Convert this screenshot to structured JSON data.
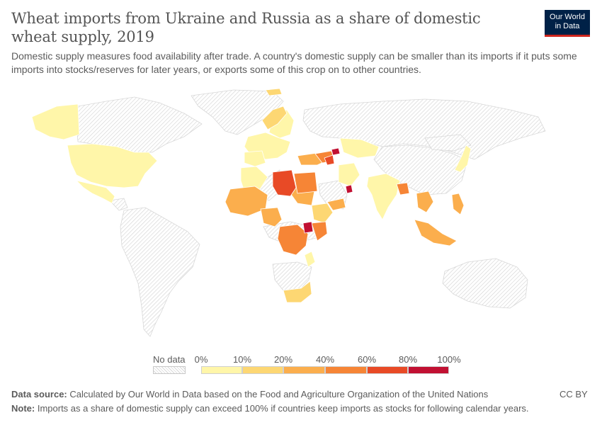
{
  "header": {
    "title": "Wheat imports from Ukraine and Russia as a share of domestic wheat supply, 2019",
    "subtitle": "Domestic supply measures food availability after trade. A country's domestic supply can be smaller than its imports if it puts some imports into stocks/reserves for later years, or exports some of this crop on to other countries.",
    "logo_line1": "Our World",
    "logo_line2": "in Data"
  },
  "legend": {
    "no_data_label": "No data",
    "ticks": [
      "0%",
      "10%",
      "20%",
      "40%",
      "60%",
      "80%",
      "100%"
    ],
    "colors": [
      "#fff6a9",
      "#fdd773",
      "#fbae4d",
      "#f68536",
      "#e84a26",
      "#c11032"
    ]
  },
  "footer": {
    "source_label": "Data source:",
    "source_text": "Calculated by Our World in Data based on the Food and Agriculture Organization of the United Nations",
    "note_label": "Note:",
    "note_text": "Imports as a share of domestic supply can exceed 100% if countries keep imports as stocks for following calendar years.",
    "license": "CC BY"
  },
  "colors": {
    "no_data_hatch": "#d8d8d8",
    "border": "#ffffff",
    "brand_navy": "#002147",
    "brand_red": "#ce261e"
  }
}
